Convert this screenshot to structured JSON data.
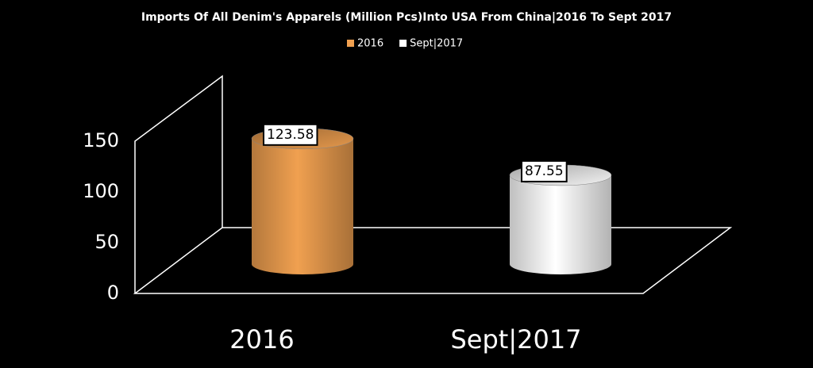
{
  "chart_data": {
    "type": "bar3d",
    "title": "Imports Of All Denim's Apparels (Million Pcs)Into USA From China|2016 To Sept 2017",
    "categories": [
      "2016",
      "Sept|2017"
    ],
    "series": [
      {
        "name": "2016",
        "color": "#f0a050",
        "values": [
          123.58,
          null
        ]
      },
      {
        "name": "Sept|2017",
        "color": "#ffffff",
        "values": [
          null,
          87.55
        ]
      }
    ],
    "ylim": [
      0,
      150
    ],
    "yticks": [
      0,
      50,
      100,
      150
    ],
    "legend": "top"
  }
}
